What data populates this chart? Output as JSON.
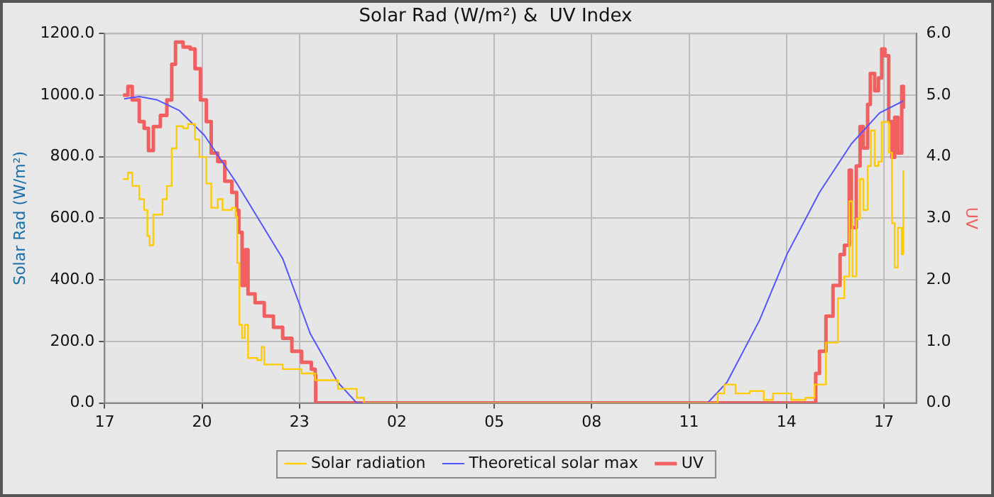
{
  "chart_data": {
    "type": "line",
    "title": "Solar Rad (W/m²) &  UV Index",
    "ylabel": "Solar Rad (W/m²)",
    "y2label": "UV",
    "xlim": [
      "--06-01T17:00",
      "--06-02T18:00"
    ],
    "xticks": [
      {
        "value": "--06-01T17:00",
        "label": "17"
      },
      {
        "value": "--06-01T20:00",
        "label": "20"
      },
      {
        "value": "--06-01T23:00",
        "label": "23"
      },
      {
        "value": "--06-02T02:00",
        "label": "02"
      },
      {
        "value": "--06-02T05:00",
        "label": "05"
      },
      {
        "value": "--06-02T08:00",
        "label": "08"
      },
      {
        "value": "--06-02T11:00",
        "label": "11"
      },
      {
        "value": "--06-02T14:00",
        "label": "14"
      },
      {
        "value": "--06-02T17:00",
        "label": "17"
      }
    ],
    "ylim": [
      0,
      1200
    ],
    "yticks": [
      {
        "value": 0,
        "label": "0.0"
      },
      {
        "value": 200,
        "label": "200.0"
      },
      {
        "value": 400,
        "label": "400.0"
      },
      {
        "value": 600,
        "label": "600.0"
      },
      {
        "value": 800,
        "label": "800.0"
      },
      {
        "value": 1000,
        "label": "1000.0"
      },
      {
        "value": 1200,
        "label": "1200.0"
      }
    ],
    "y2lim": [
      0,
      6
    ],
    "y2ticks": [
      {
        "value": 0,
        "label": "0.0"
      },
      {
        "value": 1,
        "label": "1.0"
      },
      {
        "value": 2,
        "label": "2.0"
      },
      {
        "value": 3,
        "label": "3.0"
      },
      {
        "value": 4,
        "label": "4.0"
      },
      {
        "value": 5,
        "label": "5.0"
      },
      {
        "value": 6,
        "label": "6.0"
      }
    ],
    "grid": true,
    "legend": "bottom",
    "marker": "none",
    "line_style": "solid",
    "series": [
      {
        "name": "Solar radiation",
        "type": "step",
        "color": "#ffcc00",
        "x": [
          "--06-01T17:34",
          "--06-01T17:43",
          "--06-01T17:51",
          "--06-01T18:04",
          "--06-01T18:13",
          "--06-01T18:19",
          "--06-01T18:23",
          "--06-01T18:30",
          "--06-01T18:47",
          "--06-01T18:55",
          "--06-01T19:04",
          "--06-01T19:13",
          "--06-01T19:25",
          "--06-01T19:34",
          "--06-01T19:47",
          "--06-01T19:55",
          "--06-01T20:08",
          "--06-01T20:17",
          "--06-01T20:29",
          "--06-01T20:38",
          "--06-01T20:55",
          "--06-01T21:02",
          "--06-01T21:05",
          "--06-01T21:09",
          "--06-01T21:14",
          "--06-01T21:19",
          "--06-01T21:25",
          "--06-01T21:42",
          "--06-01T21:50",
          "--06-01T21:55",
          "--06-01T22:29",
          "--06-01T23:04",
          "--06-01T23:29",
          "--06-02T00:11",
          "--06-02T00:46",
          "--06-02T00:59",
          "--06-02T11:53",
          "--06-02T12:05",
          "--06-02T12:26",
          "--06-02T12:52",
          "--06-02T13:18",
          "--06-02T13:35",
          "--06-02T14:09",
          "--06-02T14:35",
          "--06-02T14:52",
          "--06-02T15:13",
          "--06-02T15:35",
          "--06-02T15:47",
          "--06-02T15:56",
          "--06-02T16:02",
          "--06-02T16:09",
          "--06-02T16:16",
          "--06-02T16:22",
          "--06-02T16:30",
          "--06-02T16:36",
          "--06-02T16:43",
          "--06-02T16:50",
          "--06-02T16:56",
          "--06-02T17:02",
          "--06-02T17:09",
          "--06-02T17:15",
          "--06-02T17:20",
          "--06-02T17:26",
          "--06-02T17:33",
          "--06-02T17:36"
        ],
        "values": [
          727,
          748,
          705,
          662,
          627,
          542,
          512,
          612,
          662,
          705,
          827,
          899,
          892,
          906,
          856,
          799,
          713,
          634,
          662,
          627,
          634,
          605,
          455,
          254,
          211,
          254,
          146,
          139,
          182,
          125,
          110,
          96,
          74,
          46,
          17,
          0,
          31,
          60,
          31,
          39,
          10,
          31,
          10,
          17,
          60,
          196,
          340,
          411,
          655,
          411,
          598,
          727,
          627,
          770,
          885,
          770,
          784,
          913,
          913,
          813,
          584,
          440,
          569,
          483,
          756
        ]
      },
      {
        "name": "Theoretical solar max",
        "type": "line",
        "color": "#5555ff",
        "x": [
          "--06-01T17:36",
          "--06-01T18:04",
          "--06-01T18:36",
          "--06-01T19:18",
          "--06-01T20:04",
          "--06-01T21:04",
          "--06-01T22:29",
          "--06-01T23:20",
          "--06-02T00:11",
          "--06-02T00:46",
          "--06-02T11:34",
          "--06-02T12:10",
          "--06-02T13:10",
          "--06-02T14:01",
          "--06-02T15:01",
          "--06-02T16:00",
          "--06-02T16:52",
          "--06-02T17:36"
        ],
        "values": [
          988,
          995,
          985,
          950,
          870,
          714,
          469,
          225,
          67,
          0,
          0,
          67,
          268,
          483,
          684,
          842,
          942,
          981
        ]
      },
      {
        "name": "UV",
        "type": "step",
        "axis": "y2",
        "color": "#f06060",
        "x": [
          "--06-01T17:34",
          "--06-01T17:43",
          "--06-01T17:51",
          "--06-01T18:04",
          "--06-01T18:13",
          "--06-01T18:21",
          "--06-01T18:30",
          "--06-01T18:43",
          "--06-01T18:55",
          "--06-01T19:04",
          "--06-01T19:11",
          "--06-01T19:25",
          "--06-01T19:38",
          "--06-01T19:47",
          "--06-01T19:57",
          "--06-01T20:08",
          "--06-01T20:17",
          "--06-01T20:29",
          "--06-01T20:42",
          "--06-01T20:55",
          "--06-01T21:04",
          "--06-01T21:08",
          "--06-01T21:14",
          "--06-01T21:20",
          "--06-01T21:25",
          "--06-01T21:38",
          "--06-01T21:55",
          "--06-01T22:12",
          "--06-01T22:29",
          "--06-01T22:46",
          "--06-01T23:04",
          "--06-01T23:22",
          "--06-01T23:29",
          "--06-01T23:30",
          "--06-02T14:52",
          "--06-02T14:54",
          "--06-02T15:01",
          "--06-02T15:13",
          "--06-02T15:26",
          "--06-02T15:39",
          "--06-02T15:47",
          "--06-02T15:56",
          "--06-02T16:00",
          "--06-02T16:09",
          "--06-02T16:16",
          "--06-02T16:22",
          "--06-02T16:30",
          "--06-02T16:35",
          "--06-02T16:43",
          "--06-02T16:50",
          "--06-02T16:56",
          "--06-02T17:02",
          "--06-02T17:09",
          "--06-02T17:15",
          "--06-02T17:20",
          "--06-02T17:26",
          "--06-02T17:33",
          "--06-02T17:36"
        ],
        "values": [
          5.0,
          5.14,
          4.92,
          4.57,
          4.46,
          4.1,
          4.49,
          4.67,
          4.92,
          5.5,
          5.86,
          5.78,
          5.75,
          5.43,
          4.92,
          4.57,
          4.06,
          3.92,
          3.6,
          3.42,
          3.13,
          2.77,
          1.91,
          2.49,
          1.77,
          1.63,
          1.41,
          1.23,
          1.05,
          0.84,
          0.66,
          0.55,
          0.45,
          0,
          0,
          0.48,
          0.84,
          1.41,
          1.91,
          2.41,
          2.56,
          3.78,
          2.85,
          3.85,
          4.49,
          4.14,
          4.85,
          5.35,
          5.07,
          5.28,
          5.75,
          5.64,
          4.57,
          3.99,
          4.64,
          4.06,
          5.14,
          4.78
        ]
      }
    ]
  }
}
